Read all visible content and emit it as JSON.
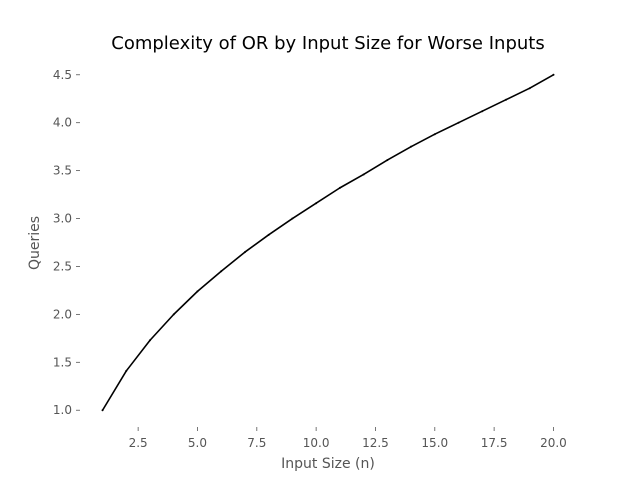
{
  "chart_data": {
    "type": "line",
    "title": "Complexity of OR by Input Size for Worse Inputs",
    "xlabel": "Input Size (n)",
    "ylabel": "Queries",
    "xlim": [
      0.05,
      20.95
    ],
    "ylim": [
      0.825,
      4.675
    ],
    "grid": false,
    "x_ticks": [
      2.5,
      5.0,
      7.5,
      10.0,
      12.5,
      15.0,
      17.5,
      20.0
    ],
    "x_tick_labels": [
      "2.5",
      "5.0",
      "7.5",
      "10.0",
      "12.5",
      "15.0",
      "17.5",
      "20.0"
    ],
    "y_ticks": [
      1.0,
      1.5,
      2.0,
      2.5,
      3.0,
      3.5,
      4.0,
      4.5
    ],
    "y_tick_labels": [
      "1.0",
      "1.5",
      "2.0",
      "2.5",
      "3.0",
      "3.5",
      "4.0",
      "4.5"
    ],
    "series": [
      {
        "color": "#000000",
        "x": [
          1,
          2,
          3,
          4,
          5,
          6,
          7,
          8,
          9,
          10,
          11,
          12,
          13,
          14,
          15,
          16,
          17,
          18,
          19,
          20
        ],
        "values": [
          1.0,
          1.41,
          1.73,
          2.0,
          2.24,
          2.45,
          2.65,
          2.83,
          3.0,
          3.16,
          3.32,
          3.46,
          3.61,
          3.75,
          3.88,
          4.0,
          4.12,
          4.24,
          4.36,
          4.5
        ]
      }
    ]
  }
}
